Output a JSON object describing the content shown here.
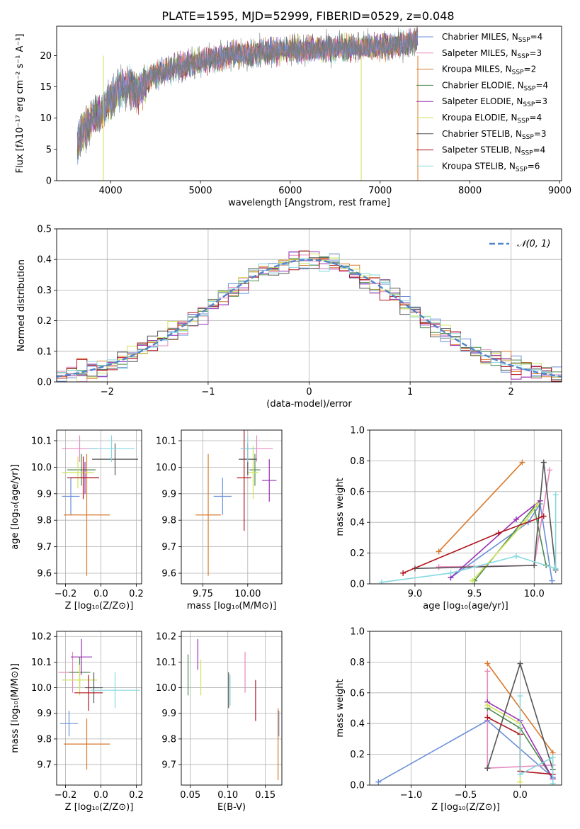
{
  "title": "PLATE=1595, MJD=52999, FIBERID=0529, z=0.048",
  "colors": {
    "miles_chabrier": "#6b8fd8",
    "miles_salpeter": "#e68abf",
    "miles_kroupa": "#d97a2c",
    "elodie_chabrier": "#4d8a4d",
    "elodie_salpeter": "#9a2fb4",
    "elodie_kroupa": "#cfe35a",
    "stelib_chabrier": "#555555",
    "stelib_salpeter": "#b0151d",
    "stelib_kroupa": "#86d8e0",
    "gauss": "#4f83c9",
    "grid": "#b0b0b0"
  },
  "chart_data": [
    {
      "id": "spectrum",
      "type": "line",
      "xlabel": "wavelength [Angstrom, rest frame]",
      "ylabel": "Flux [fλ10⁻¹⁷ erg cm⁻² s⁻¹ A⁻¹]",
      "xlim": [
        3400,
        9020
      ],
      "ylim": [
        0,
        24.7
      ],
      "xticks": [
        4000,
        5000,
        6000,
        7000,
        8000,
        9000
      ],
      "yticks": [
        0,
        5,
        10,
        15,
        20
      ],
      "grid": false,
      "legend_position": "top-right",
      "data_range": [
        3630,
        7420
      ],
      "envelope": {
        "x": [
          3630,
          3700,
          3800,
          3900,
          4000,
          4100,
          4200,
          4300,
          4400,
          4500,
          4700,
          5000,
          5300,
          5600,
          6000,
          6300,
          6600,
          6900,
          7100,
          7300,
          7420
        ],
        "y": [
          6,
          8,
          10,
          11,
          13,
          15,
          15,
          14,
          16,
          17,
          18,
          19,
          20,
          20.5,
          21,
          21,
          21.2,
          21.3,
          21.5,
          22,
          23
        ]
      },
      "series": [
        {
          "name": "Chabrier MILES, N_SSP=4",
          "color_key": "miles_chabrier"
        },
        {
          "name": "Salpeter MILES, N_SSP=3",
          "color_key": "miles_salpeter"
        },
        {
          "name": "Kroupa MILES, N_SSP=2",
          "color_key": "miles_kroupa"
        },
        {
          "name": "Chabrier ELODIE, N_SSP=4",
          "color_key": "elodie_chabrier"
        },
        {
          "name": "Salpeter ELODIE, N_SSP=3",
          "color_key": "elodie_salpeter"
        },
        {
          "name": "Kroupa ELODIE, N_SSP=4",
          "color_key": "elodie_kroupa"
        },
        {
          "name": "Chabrier STELIB, N_SSP=3",
          "color_key": "stelib_chabrier"
        },
        {
          "name": "Salpeter STELIB, N_SSP=4",
          "color_key": "stelib_salpeter"
        },
        {
          "name": "Kroupa STELIB, N_SSP=6",
          "color_key": "stelib_kroupa"
        }
      ]
    },
    {
      "id": "residuals",
      "type": "histogram",
      "xlabel": "(data-model)/error",
      "ylabel": "Normed distribution",
      "xlim": [
        -2.5,
        2.5
      ],
      "ylim": [
        0,
        0.5
      ],
      "xticks": [
        -2,
        -1,
        0,
        1,
        2
      ],
      "yticks": [
        0.0,
        0.1,
        0.2,
        0.3,
        0.4,
        0.5
      ],
      "grid": true,
      "legend": "𝒩(0, 1)",
      "legend_position": "top-right",
      "bin_width": 0.1
    },
    {
      "id": "age_vs_z",
      "type": "errorbar",
      "xlabel": "Z [log₁₀(Z/Z⊙)]",
      "ylabel": "age  [log₁₀(age/yr)]",
      "xlim": [
        -0.25,
        0.23
      ],
      "ylim": [
        9.56,
        10.14
      ],
      "xticks": [
        -0.2,
        0.0,
        0.2
      ],
      "yticks": [
        9.6,
        9.7,
        9.8,
        9.9,
        10.0,
        10.1
      ],
      "grid": true,
      "points": [
        {
          "color_key": "miles_chabrier",
          "x": -0.17,
          "xerr": 0.05,
          "y": 9.89,
          "yerr": 0.07
        },
        {
          "color_key": "miles_salpeter",
          "x": -0.12,
          "xerr": 0.1,
          "y": 10.07,
          "yerr": 0.05
        },
        {
          "color_key": "miles_kroupa",
          "x": -0.08,
          "xerr": 0.13,
          "y": 9.82,
          "yerr": 0.23
        },
        {
          "color_key": "elodie_chabrier",
          "x": -0.11,
          "xerr": 0.08,
          "y": 9.99,
          "yerr": 0.06
        },
        {
          "color_key": "elodie_salpeter",
          "x": -0.09,
          "xerr": 0.08,
          "y": 9.96,
          "yerr": 0.06
        },
        {
          "color_key": "elodie_kroupa",
          "x": -0.13,
          "xerr": 0.09,
          "y": 9.98,
          "yerr": 0.06
        },
        {
          "color_key": "stelib_chabrier",
          "x": 0.08,
          "xerr": 0.13,
          "y": 10.03,
          "yerr": 0.06
        },
        {
          "color_key": "stelib_salpeter",
          "x": -0.1,
          "xerr": 0.09,
          "y": 9.96,
          "yerr": 0.08
        },
        {
          "color_key": "stelib_kroupa",
          "x": 0.06,
          "xerr": 0.13,
          "y": 10.07,
          "yerr": 0.05
        }
      ]
    },
    {
      "id": "age_vs_mass",
      "type": "errorbar",
      "xlabel": "mass [log₁₀(M/M⊙)]",
      "ylabel": "",
      "xlim": [
        9.63,
        10.19
      ],
      "ylim": [
        9.56,
        10.14
      ],
      "xticks": [
        9.75,
        10.0
      ],
      "xticklabels": [
        "9.75",
        "10.00"
      ],
      "yticks": [
        9.6,
        9.7,
        9.8,
        9.9,
        10.0,
        10.1
      ],
      "grid": true,
      "points": [
        {
          "color_key": "miles_chabrier",
          "x": 9.86,
          "xerr": 0.05,
          "y": 9.89,
          "yerr": 0.07
        },
        {
          "color_key": "miles_salpeter",
          "x": 10.05,
          "xerr": 0.09,
          "y": 10.07,
          "yerr": 0.05
        },
        {
          "color_key": "miles_kroupa",
          "x": 9.78,
          "xerr": 0.07,
          "y": 9.82,
          "yerr": 0.23
        },
        {
          "color_key": "elodie_chabrier",
          "x": 10.04,
          "xerr": 0.03,
          "y": 9.99,
          "yerr": 0.06
        },
        {
          "color_key": "elodie_salpeter",
          "x": 10.12,
          "xerr": 0.04,
          "y": 9.95,
          "yerr": 0.08
        },
        {
          "color_key": "elodie_kroupa",
          "x": 10.03,
          "xerr": 0.03,
          "y": 9.98,
          "yerr": 0.1
        },
        {
          "color_key": "stelib_chabrier",
          "x": 10.0,
          "xerr": 0.05,
          "y": 10.03,
          "yerr": 0.06
        },
        {
          "color_key": "stelib_salpeter",
          "x": 9.98,
          "xerr": 0.04,
          "y": 9.96,
          "yerr": 0.2
        },
        {
          "color_key": "stelib_kroupa",
          "x": 10.0,
          "xerr": 0.04,
          "y": 10.07,
          "yerr": 0.05
        }
      ]
    },
    {
      "id": "mass_weight_vs_age",
      "type": "line",
      "xlabel": "age  [log₁₀(age/yr)]",
      "ylabel": "mass weight",
      "xlim": [
        8.62,
        10.23
      ],
      "ylim": [
        0,
        1
      ],
      "xticks": [
        9.0,
        9.5,
        10.0
      ],
      "yticks": [
        0.0,
        0.2,
        0.4,
        0.6,
        0.8,
        1.0
      ],
      "grid": true,
      "series": [
        {
          "color_key": "miles_chabrier",
          "x": [
            9.3,
            9.95,
            10.05,
            10.15
          ],
          "y": [
            0.04,
            0.4,
            0.52,
            0.02
          ]
        },
        {
          "color_key": "miles_salpeter",
          "x": [
            9.2,
            10.0,
            10.13
          ],
          "y": [
            0.11,
            0.12,
            0.74
          ]
        },
        {
          "color_key": "miles_kroupa",
          "x": [
            9.2,
            9.9
          ],
          "y": [
            0.21,
            0.79
          ]
        },
        {
          "color_key": "elodie_chabrier",
          "x": [
            9.5,
            10.0,
            10.1
          ],
          "y": [
            0.02,
            0.5,
            0.12
          ]
        },
        {
          "color_key": "elodie_salpeter",
          "x": [
            9.3,
            9.85,
            10.05
          ],
          "y": [
            0.04,
            0.42,
            0.54
          ]
        },
        {
          "color_key": "elodie_kroupa",
          "x": [
            9.48,
            9.92,
            10.03
          ],
          "y": [
            0.02,
            0.4,
            0.52
          ]
        },
        {
          "color_key": "stelib_chabrier",
          "x": [
            9.0,
            10.0,
            10.08,
            10.18
          ],
          "y": [
            0.1,
            0.12,
            0.79,
            0.09
          ]
        },
        {
          "color_key": "stelib_salpeter",
          "x": [
            8.9,
            9.7,
            10.08
          ],
          "y": [
            0.07,
            0.33,
            0.44
          ]
        },
        {
          "color_key": "stelib_kroupa",
          "x": [
            8.72,
            9.3,
            9.85,
            10.18,
            10.18
          ],
          "y": [
            0.01,
            0.07,
            0.18,
            0.1,
            0.58
          ]
        }
      ]
    },
    {
      "id": "mass_vs_z",
      "type": "errorbar",
      "xlabel": "Z [log₁₀(Z/Z⊙)]",
      "ylabel": "mass [log₁₀(M/M⊙)]",
      "xlim": [
        -0.25,
        0.23
      ],
      "ylim": [
        9.62,
        10.22
      ],
      "xticks": [
        -0.2,
        0.0,
        0.2
      ],
      "yticks": [
        9.7,
        9.8,
        9.9,
        10.0,
        10.1,
        10.2
      ],
      "grid": true,
      "points": [
        {
          "color_key": "miles_chabrier",
          "x": -0.18,
          "xerr": 0.05,
          "y": 9.86,
          "yerr": 0.05
        },
        {
          "color_key": "miles_salpeter",
          "x": -0.16,
          "xerr": 0.08,
          "y": 10.06,
          "yerr": 0.08
        },
        {
          "color_key": "miles_kroupa",
          "x": -0.08,
          "xerr": 0.13,
          "y": 9.78,
          "yerr": 0.1
        },
        {
          "color_key": "elodie_chabrier",
          "x": -0.12,
          "xerr": 0.06,
          "y": 10.06,
          "yerr": 0.06
        },
        {
          "color_key": "elodie_salpeter",
          "x": -0.11,
          "xerr": 0.06,
          "y": 10.12,
          "yerr": 0.07
        },
        {
          "color_key": "elodie_kroupa",
          "x": -0.12,
          "xerr": 0.1,
          "y": 10.03,
          "yerr": 0.06
        },
        {
          "color_key": "stelib_chabrier",
          "x": -0.04,
          "xerr": 0.05,
          "y": 10.0,
          "yerr": 0.06
        },
        {
          "color_key": "stelib_salpeter",
          "x": -0.07,
          "xerr": 0.08,
          "y": 9.98,
          "yerr": 0.07
        },
        {
          "color_key": "stelib_kroupa",
          "x": 0.08,
          "xerr": 0.14,
          "y": 9.99,
          "yerr": 0.07
        }
      ]
    },
    {
      "id": "mass_vs_ebv",
      "type": "errorbar",
      "xlabel": "E(B-V)",
      "ylabel": "",
      "xlim": [
        0.038,
        0.172
      ],
      "ylim": [
        9.62,
        10.22
      ],
      "xticks": [
        0.05,
        0.1,
        0.15
      ],
      "xticklabels": [
        "0.05",
        "0.10",
        "0.15"
      ],
      "yticks": [
        9.7,
        9.8,
        9.9,
        10.0,
        10.1,
        10.2
      ],
      "grid": true,
      "points": [
        {
          "color_key": "miles_chabrier",
          "x": 0.168,
          "xerr": 0.0,
          "y": 9.86,
          "yerr": 0.05
        },
        {
          "color_key": "miles_salpeter",
          "x": 0.123,
          "xerr": 0.0,
          "y": 10.06,
          "yerr": 0.08
        },
        {
          "color_key": "miles_kroupa",
          "x": 0.167,
          "xerr": 0.0,
          "y": 9.78,
          "yerr": 0.14
        },
        {
          "color_key": "elodie_chabrier",
          "x": 0.047,
          "xerr": 0.0,
          "y": 10.05,
          "yerr": 0.08
        },
        {
          "color_key": "elodie_salpeter",
          "x": 0.06,
          "xerr": 0.0,
          "y": 10.13,
          "yerr": 0.06
        },
        {
          "color_key": "elodie_kroupa",
          "x": 0.064,
          "xerr": 0.0,
          "y": 10.04,
          "yerr": 0.07
        },
        {
          "color_key": "stelib_chabrier",
          "x": 0.101,
          "xerr": 0.0,
          "y": 9.99,
          "yerr": 0.07
        },
        {
          "color_key": "stelib_salpeter",
          "x": 0.137,
          "xerr": 0.0,
          "y": 9.95,
          "yerr": 0.08
        },
        {
          "color_key": "stelib_kroupa",
          "x": 0.103,
          "xerr": 0.0,
          "y": 9.99,
          "yerr": 0.06
        }
      ]
    },
    {
      "id": "mass_weight_vs_z",
      "type": "line",
      "xlabel": "Z [log₁₀(Z/Z⊙)]",
      "ylabel": "mass weight",
      "xlim": [
        -1.38,
        0.38
      ],
      "ylim": [
        0,
        1
      ],
      "xticks": [
        -1.0,
        -0.5,
        0.0
      ],
      "yticks": [
        0.0,
        0.2,
        0.4,
        0.6,
        0.8,
        1.0
      ],
      "grid": true,
      "series": [
        {
          "color_key": "miles_chabrier",
          "x": [
            -1.3,
            -0.3,
            0.3
          ],
          "y": [
            0.02,
            0.42,
            0.05
          ]
        },
        {
          "color_key": "miles_salpeter",
          "x": [
            -0.3,
            -0.3,
            0.3
          ],
          "y": [
            0.74,
            0.11,
            0.13
          ]
        },
        {
          "color_key": "miles_kroupa",
          "x": [
            -0.3,
            0.3
          ],
          "y": [
            0.79,
            0.21
          ]
        },
        {
          "color_key": "elodie_chabrier",
          "x": [
            -0.3,
            0.0,
            0.3
          ],
          "y": [
            0.5,
            0.37,
            0.04
          ]
        },
        {
          "color_key": "elodie_salpeter",
          "x": [
            -0.3,
            0.0,
            0.3
          ],
          "y": [
            0.54,
            0.42,
            0.04
          ]
        },
        {
          "color_key": "elodie_kroupa",
          "x": [
            -0.3,
            0.0,
            0.0
          ],
          "y": [
            0.52,
            0.4,
            0.02
          ]
        },
        {
          "color_key": "stelib_chabrier",
          "x": [
            -0.3,
            0.0,
            0.3
          ],
          "y": [
            0.11,
            0.79,
            0.1
          ]
        },
        {
          "color_key": "stelib_salpeter",
          "x": [
            -0.3,
            0.0,
            0.0,
            0.3
          ],
          "y": [
            0.44,
            0.33,
            0.09,
            0.07
          ]
        },
        {
          "color_key": "stelib_kroupa",
          "x": [
            0.0,
            0.0,
            0.3,
            0.3
          ],
          "y": [
            0.58,
            0.07,
            0.18,
            0.01
          ]
        }
      ]
    }
  ]
}
